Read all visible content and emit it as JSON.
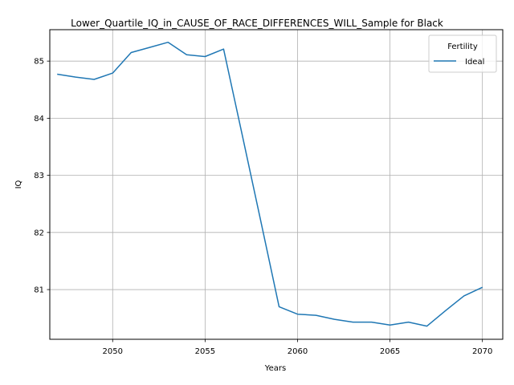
{
  "chart_data": {
    "type": "line",
    "title": "Lower_Quartile_IQ_in_CAUSE_OF_RACE_DIFFERENCES_WILL_Sample for Black",
    "xlabel": "Years",
    "ylabel": "IQ",
    "xlim": [
      2046.6,
      2071.1
    ],
    "ylim": [
      80.13,
      85.55
    ],
    "xticks": [
      2050,
      2055,
      2060,
      2065,
      2070
    ],
    "yticks": [
      81,
      82,
      83,
      84,
      85
    ],
    "grid": true,
    "legend": {
      "title": "Fertility",
      "position": "top-right"
    },
    "series": [
      {
        "name": "Ideal",
        "color": "#1f77b4",
        "x": [
          2047,
          2048,
          2049,
          2050,
          2051,
          2052,
          2053,
          2054,
          2055,
          2056,
          2057,
          2058,
          2059,
          2060,
          2061,
          2062,
          2063,
          2064,
          2065,
          2066,
          2067,
          2068,
          2069,
          2070
        ],
        "y": [
          84.77,
          84.72,
          84.68,
          84.79,
          85.15,
          85.24,
          85.33,
          85.11,
          85.08,
          85.21,
          83.72,
          82.22,
          80.7,
          80.57,
          80.55,
          80.48,
          80.43,
          80.43,
          80.38,
          80.43,
          80.36,
          80.63,
          80.89,
          81.04
        ]
      }
    ]
  }
}
